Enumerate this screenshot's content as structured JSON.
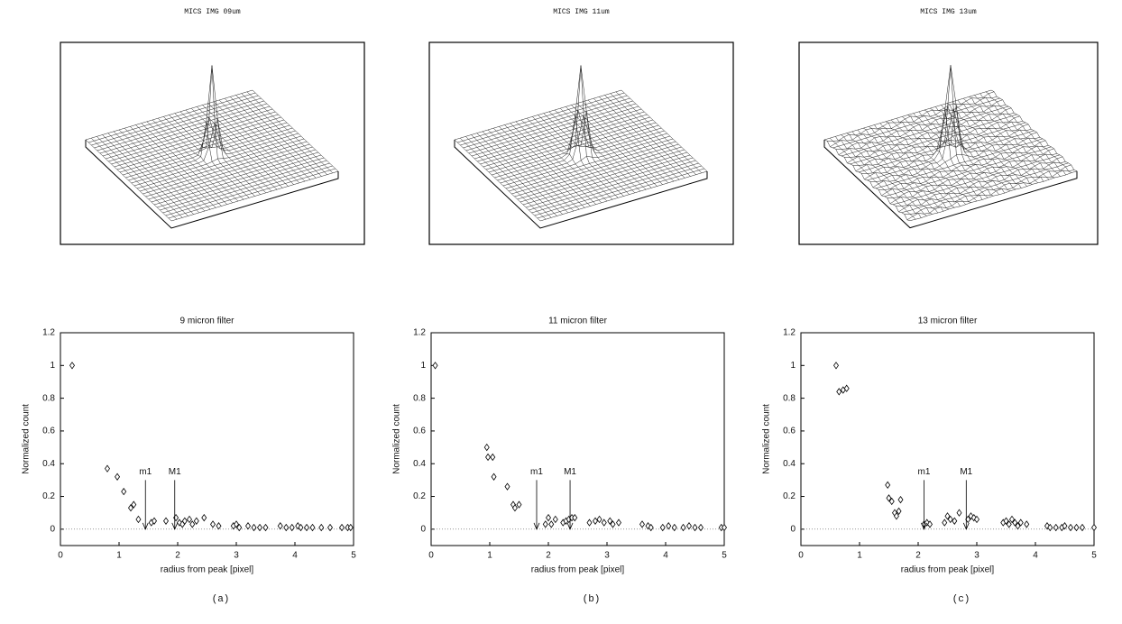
{
  "surfaces": [
    {
      "title": "MICS IMG 09um"
    },
    {
      "title": "MICS IMG 11um"
    },
    {
      "title": "MICS IMG 13um"
    }
  ],
  "panel_labels": [
    "(a)",
    "(b)",
    "(c)"
  ],
  "chart_data": [
    {
      "type": "scatter",
      "title": "9 micron filter",
      "x_label": "radius from peak [pixel]",
      "y_label": "Normalized count",
      "xlim": [
        0,
        5
      ],
      "ylim": [
        -0.1,
        1.2
      ],
      "xticks": [
        0,
        1,
        2,
        3,
        4,
        5
      ],
      "yticks": [
        0,
        0.2,
        0.4,
        0.6,
        0.8,
        1,
        1.2
      ],
      "x": [
        0.2,
        0.8,
        0.97,
        1.08,
        1.2,
        1.25,
        1.33,
        1.55,
        1.6,
        1.8,
        1.97,
        2.03,
        2.08,
        2.12,
        2.2,
        2.25,
        2.32,
        2.45,
        2.6,
        2.7,
        2.95,
        3.0,
        3.05,
        3.2,
        3.3,
        3.4,
        3.5,
        3.75,
        3.85,
        3.95,
        4.05,
        4.1,
        4.2,
        4.3,
        4.45,
        4.6,
        4.8,
        4.9,
        4.95
      ],
      "values": [
        1.0,
        0.37,
        0.32,
        0.23,
        0.13,
        0.15,
        0.06,
        0.04,
        0.05,
        0.05,
        0.07,
        0.04,
        0.03,
        0.05,
        0.06,
        0.03,
        0.05,
        0.07,
        0.03,
        0.02,
        0.02,
        0.03,
        0.01,
        0.02,
        0.01,
        0.01,
        0.01,
        0.02,
        0.01,
        0.01,
        0.02,
        0.01,
        0.01,
        0.01,
        0.01,
        0.01,
        0.01,
        0.01,
        0.01
      ],
      "annotations": [
        {
          "text": "m1",
          "x": 1.45,
          "y": 0.3
        },
        {
          "text": "M1",
          "x": 1.95,
          "y": 0.3
        }
      ]
    },
    {
      "type": "scatter",
      "title": "11 micron filter",
      "x_label": "radius from peak [pixel]",
      "y_label": "Normalized count",
      "xlim": [
        0,
        5
      ],
      "ylim": [
        -0.1,
        1.2
      ],
      "xticks": [
        0,
        1,
        2,
        3,
        4,
        5
      ],
      "yticks": [
        0,
        0.2,
        0.4,
        0.6,
        0.8,
        1,
        1.2
      ],
      "x": [
        0.07,
        0.95,
        0.97,
        1.05,
        1.07,
        1.3,
        1.4,
        1.43,
        1.5,
        1.95,
        2.0,
        2.05,
        2.12,
        2.25,
        2.3,
        2.35,
        2.4,
        2.45,
        2.7,
        2.8,
        2.87,
        2.95,
        3.05,
        3.1,
        3.2,
        3.6,
        3.7,
        3.75,
        3.95,
        4.05,
        4.15,
        4.3,
        4.4,
        4.5,
        4.6,
        4.95,
        5.0
      ],
      "values": [
        1.0,
        0.5,
        0.44,
        0.44,
        0.32,
        0.26,
        0.15,
        0.13,
        0.15,
        0.03,
        0.07,
        0.03,
        0.06,
        0.04,
        0.05,
        0.06,
        0.07,
        0.07,
        0.04,
        0.05,
        0.06,
        0.04,
        0.05,
        0.03,
        0.04,
        0.03,
        0.02,
        0.01,
        0.01,
        0.02,
        0.01,
        0.01,
        0.02,
        0.01,
        0.01,
        0.01,
        0.01
      ],
      "annotations": [
        {
          "text": "m1",
          "x": 1.8,
          "y": 0.3
        },
        {
          "text": "M1",
          "x": 2.37,
          "y": 0.3
        }
      ]
    },
    {
      "type": "scatter",
      "title": "13 micron filter",
      "x_label": "radius from peak [pixel]",
      "y_label": "Normalized count",
      "xlim": [
        0,
        5
      ],
      "ylim": [
        -0.1,
        1.2
      ],
      "xticks": [
        0,
        1,
        2,
        3,
        4,
        5
      ],
      "yticks": [
        0,
        0.2,
        0.4,
        0.6,
        0.8,
        1,
        1.2
      ],
      "x": [
        0.6,
        0.65,
        0.72,
        0.78,
        1.48,
        1.5,
        1.55,
        1.6,
        1.63,
        1.67,
        1.7,
        2.1,
        2.15,
        2.2,
        2.45,
        2.5,
        2.55,
        2.62,
        2.7,
        2.85,
        2.9,
        2.95,
        3.0,
        3.45,
        3.5,
        3.55,
        3.6,
        3.65,
        3.7,
        3.75,
        3.85,
        4.2,
        4.25,
        4.35,
        4.45,
        4.5,
        4.6,
        4.7,
        4.8,
        5.0
      ],
      "values": [
        1.0,
        0.84,
        0.85,
        0.86,
        0.27,
        0.19,
        0.17,
        0.1,
        0.08,
        0.11,
        0.18,
        0.03,
        0.04,
        0.03,
        0.04,
        0.08,
        0.06,
        0.05,
        0.1,
        0.06,
        0.08,
        0.07,
        0.06,
        0.04,
        0.05,
        0.03,
        0.06,
        0.04,
        0.02,
        0.04,
        0.03,
        0.02,
        0.01,
        0.01,
        0.01,
        0.02,
        0.01,
        0.01,
        0.01,
        0.01
      ],
      "annotations": [
        {
          "text": "m1",
          "x": 2.1,
          "y": 0.3
        },
        {
          "text": "M1",
          "x": 2.82,
          "y": 0.3
        }
      ]
    }
  ]
}
